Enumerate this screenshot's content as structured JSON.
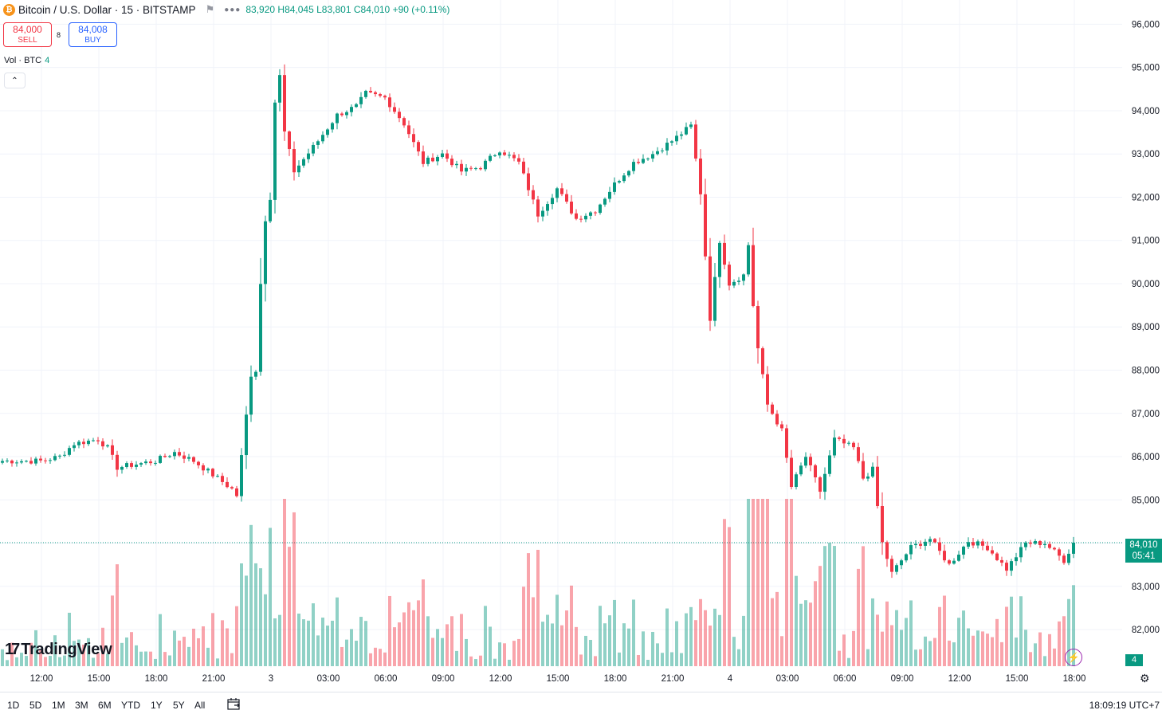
{
  "header": {
    "title": "Bitcoin / U.S. Dollar · 15 · BITSTAMP",
    "ohlc": {
      "o_label": "",
      "o": "83,920",
      "h_label": "H",
      "h": "84,045",
      "l_label": "L",
      "l": "83,801",
      "c_label": "C",
      "c": "84,010",
      "change": "+90 (+0.11%)"
    }
  },
  "trade": {
    "sell_price": "84,000",
    "sell_label": "SELL",
    "spread": "8",
    "buy_price": "84,008",
    "buy_label": "BUY"
  },
  "volume_legend": {
    "label": "Vol · BTC",
    "value": "4"
  },
  "logo": "TradingView",
  "price_label": {
    "price": "84,010",
    "countdown": "05:41"
  },
  "volume_tag": "4",
  "bottom_bar": {
    "ranges": [
      "1D",
      "5D",
      "1M",
      "3M",
      "6M",
      "YTD",
      "1Y",
      "5Y",
      "All"
    ],
    "clock": "18:09:19 UTC+7"
  },
  "colors": {
    "up": "#089981",
    "down": "#f23645",
    "grid": "#f0f3fa"
  },
  "chart_data": {
    "type": "candlestick",
    "symbol": "BTCUSD",
    "exchange": "BITSTAMP",
    "interval_minutes": 15,
    "y_ticks": [
      "96,000",
      "95,000",
      "94,000",
      "93,000",
      "92,000",
      "91,000",
      "90,000",
      "89,000",
      "88,000",
      "87,000",
      "86,000",
      "85,000",
      "84,000",
      "83,000",
      "82,000"
    ],
    "y_tick_values": [
      96000,
      95000,
      94000,
      93000,
      92000,
      91000,
      90000,
      89000,
      88000,
      87000,
      86000,
      85000,
      84000,
      83000,
      82000
    ],
    "x_ticks": [
      "12:00",
      "15:00",
      "18:00",
      "21:00",
      "3",
      "03:00",
      "06:00",
      "09:00",
      "12:00",
      "15:00",
      "18:00",
      "21:00",
      "4",
      "03:00",
      "06:00",
      "09:00",
      "12:00",
      "15:00",
      "18:00"
    ],
    "last_price": 84010,
    "anchors": [
      [
        0,
        85900
      ],
      [
        8,
        85900
      ],
      [
        12,
        86000
      ],
      [
        15,
        86300
      ],
      [
        20,
        86400
      ],
      [
        22,
        86200
      ],
      [
        24,
        85750
      ],
      [
        32,
        85900
      ],
      [
        36,
        86100
      ],
      [
        40,
        85900
      ],
      [
        45,
        85500
      ],
      [
        48,
        85250
      ],
      [
        49,
        85100
      ],
      [
        50,
        86000
      ],
      [
        52,
        87900
      ],
      [
        53,
        88000
      ],
      [
        54,
        90000
      ],
      [
        55,
        91500
      ],
      [
        56,
        92000
      ],
      [
        57,
        94200
      ],
      [
        58,
        94800
      ],
      [
        59,
        93500
      ],
      [
        61,
        92600
      ],
      [
        66,
        93300
      ],
      [
        70,
        93900
      ],
      [
        74,
        94100
      ],
      [
        76,
        94400
      ],
      [
        80,
        94300
      ],
      [
        84,
        93700
      ],
      [
        88,
        92800
      ],
      [
        92,
        93000
      ],
      [
        96,
        92600
      ],
      [
        100,
        92700
      ],
      [
        104,
        93100
      ],
      [
        108,
        92800
      ],
      [
        112,
        91600
      ],
      [
        116,
        92200
      ],
      [
        120,
        91500
      ],
      [
        124,
        91700
      ],
      [
        128,
        92300
      ],
      [
        132,
        92800
      ],
      [
        136,
        93000
      ],
      [
        140,
        93300
      ],
      [
        144,
        93650
      ],
      [
        146,
        92100
      ],
      [
        148,
        89200
      ],
      [
        150,
        91000
      ],
      [
        152,
        90000
      ],
      [
        155,
        90200
      ],
      [
        156,
        90900
      ],
      [
        157,
        89500
      ],
      [
        158,
        88500
      ],
      [
        160,
        87200
      ],
      [
        163,
        86600
      ],
      [
        165,
        85300
      ],
      [
        168,
        86000
      ],
      [
        171,
        85200
      ],
      [
        174,
        86400
      ],
      [
        178,
        86200
      ],
      [
        180,
        85500
      ],
      [
        182,
        85700
      ],
      [
        184,
        84000
      ],
      [
        186,
        83300
      ],
      [
        190,
        83900
      ],
      [
        194,
        84100
      ],
      [
        198,
        83500
      ],
      [
        202,
        84050
      ],
      [
        206,
        83900
      ],
      [
        210,
        83400
      ],
      [
        214,
        84000
      ],
      [
        218,
        84000
      ],
      [
        222,
        83600
      ],
      [
        224,
        84000
      ]
    ]
  }
}
